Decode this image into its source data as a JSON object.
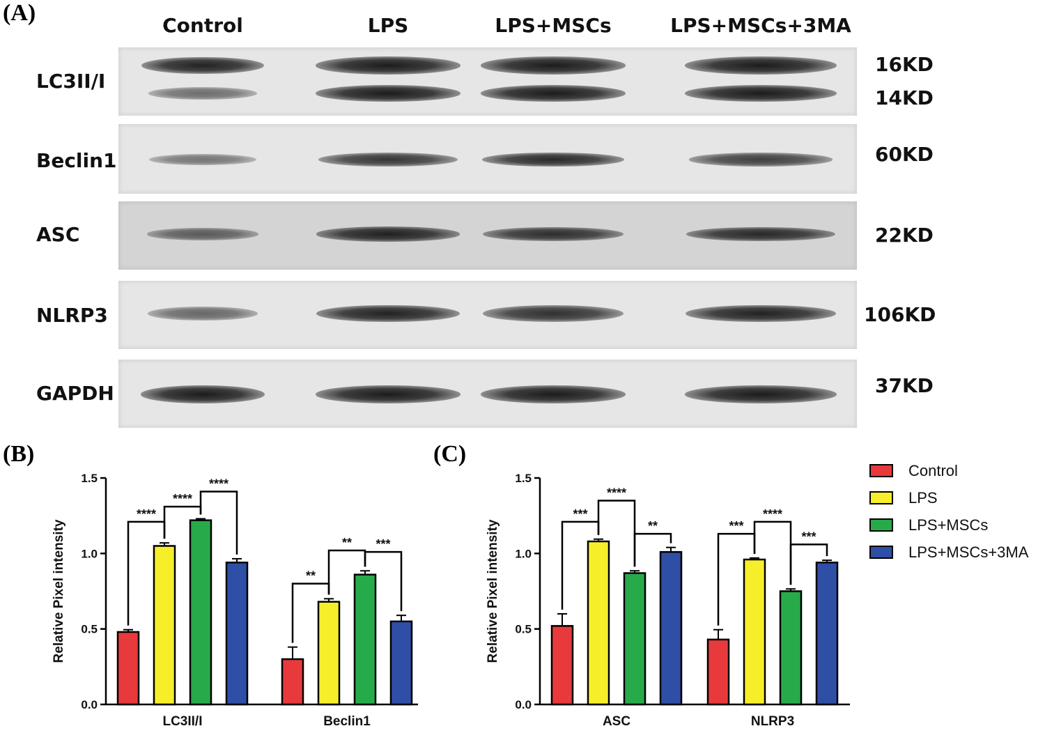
{
  "panels": {
    "a": "(A)",
    "b": "(B)",
    "c": "(C)"
  },
  "blot": {
    "lanes": [
      "Control",
      "LPS",
      "LPS+MSCs",
      "LPS+MSCs+3MA"
    ],
    "rows": [
      {
        "protein": "LC3II/I",
        "kd": [
          "16KD",
          "14KD"
        ],
        "intensity": [
          0.9,
          0.95,
          0.95,
          0.95
        ]
      },
      {
        "protein": "Beclin1",
        "kd": [
          "60KD"
        ],
        "intensity": [
          0.3,
          0.75,
          0.85,
          0.7
        ]
      },
      {
        "protein": "ASC",
        "kd": [
          "22KD"
        ],
        "intensity": [
          0.45,
          0.9,
          0.8,
          0.85
        ]
      },
      {
        "protein": "NLRP3",
        "kd": [
          "106KD"
        ],
        "intensity": [
          0.4,
          0.9,
          0.8,
          0.9
        ]
      },
      {
        "protein": "GAPDH",
        "kd": [
          "37KD"
        ],
        "intensity": [
          0.95,
          0.95,
          0.95,
          0.95
        ]
      }
    ]
  },
  "colors": {
    "Control": "#e83a3c",
    "LPS": "#f7ee2a",
    "LPS+MSCs": "#27aa49",
    "LPS+MSCs+3MA": "#2f4ea6"
  },
  "chart_data": [
    {
      "type": "bar",
      "panel": "B",
      "categories": [
        "LC3II/I",
        "Beclin1"
      ],
      "ylabel": "Relative Pixel intensity",
      "ylim": [
        0,
        1.5
      ],
      "yticks": [
        "0.0",
        "0.5",
        "1.0",
        "1.5"
      ],
      "series": [
        {
          "name": "Control",
          "values": [
            0.48,
            0.3
          ],
          "errors": [
            0.015,
            0.08
          ]
        },
        {
          "name": "LPS",
          "values": [
            1.05,
            0.68
          ],
          "errors": [
            0.02,
            0.02
          ]
        },
        {
          "name": "LPS+MSCs",
          "values": [
            1.22,
            0.86
          ],
          "errors": [
            0.01,
            0.025
          ]
        },
        {
          "name": "LPS+MSCs+3MA",
          "values": [
            0.94,
            0.55
          ],
          "errors": [
            0.025,
            0.04
          ]
        }
      ],
      "significance": [
        {
          "category": 0,
          "from": 0,
          "to": 1,
          "y": 1.21,
          "label": "****"
        },
        {
          "category": 0,
          "from": 1,
          "to": 2,
          "y": 1.31,
          "label": "****"
        },
        {
          "category": 0,
          "from": 2,
          "to": 3,
          "y": 1.41,
          "label": "****"
        },
        {
          "category": 1,
          "from": 0,
          "to": 1,
          "y": 0.8,
          "label": "**"
        },
        {
          "category": 1,
          "from": 1,
          "to": 2,
          "y": 1.02,
          "label": "**"
        },
        {
          "category": 1,
          "from": 2,
          "to": 3,
          "y": 1.01,
          "label": "***"
        }
      ]
    },
    {
      "type": "bar",
      "panel": "C",
      "categories": [
        "ASC",
        "NLRP3"
      ],
      "ylabel": "Relative Pixel intensity",
      "ylim": [
        0,
        1.5
      ],
      "yticks": [
        "0.0",
        "0.5",
        "1.0",
        "1.5"
      ],
      "series": [
        {
          "name": "Control",
          "values": [
            0.52,
            0.43
          ],
          "errors": [
            0.08,
            0.065
          ]
        },
        {
          "name": "LPS",
          "values": [
            1.08,
            0.96
          ],
          "errors": [
            0.015,
            0.01
          ]
        },
        {
          "name": "LPS+MSCs",
          "values": [
            0.87,
            0.75
          ],
          "errors": [
            0.015,
            0.015
          ]
        },
        {
          "name": "LPS+MSCs+3MA",
          "values": [
            1.01,
            0.94
          ],
          "errors": [
            0.03,
            0.015
          ]
        }
      ],
      "significance": [
        {
          "category": 0,
          "from": 0,
          "to": 1,
          "y": 1.21,
          "label": "***"
        },
        {
          "category": 0,
          "from": 1,
          "to": 2,
          "y": 1.35,
          "label": "****"
        },
        {
          "category": 0,
          "from": 2,
          "to": 3,
          "y": 1.13,
          "label": "**"
        },
        {
          "category": 1,
          "from": 0,
          "to": 1,
          "y": 1.13,
          "label": "***"
        },
        {
          "category": 1,
          "from": 1,
          "to": 2,
          "y": 1.21,
          "label": "****"
        },
        {
          "category": 1,
          "from": 2,
          "to": 3,
          "y": 1.06,
          "label": "***"
        }
      ]
    }
  ],
  "legend": [
    "Control",
    "LPS",
    "LPS+MSCs",
    "LPS+MSCs+3MA"
  ]
}
